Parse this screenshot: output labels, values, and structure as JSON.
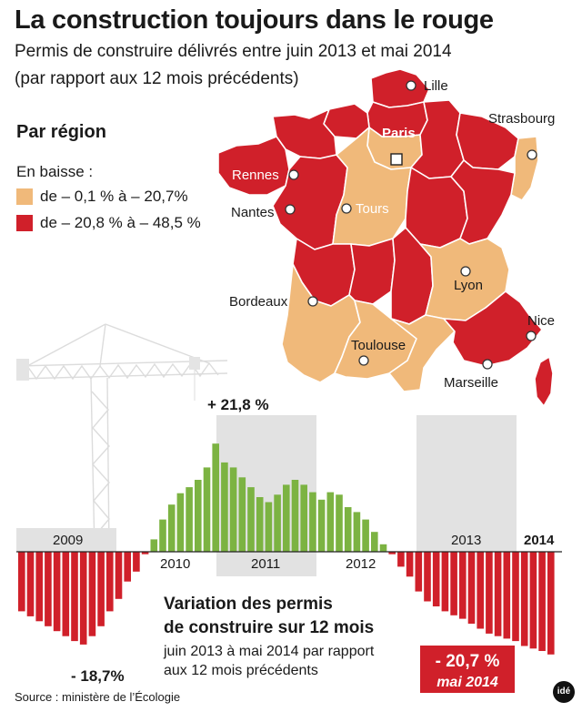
{
  "header": {
    "title": "La construction toujours dans le rouge",
    "subtitle_line1": "Permis de construire délivrés entre juin 2013 et mai 2014",
    "subtitle_line2": "(par rapport aux 12 mois précédents)"
  },
  "legend": {
    "heading": "Par région",
    "subheading": "En baisse :",
    "items": [
      {
        "label": "de – 0,1 % à – 20,7%",
        "color": "#f0b97a"
      },
      {
        "label": "de – 20,8 % à – 48,5 %",
        "color": "#d0202a"
      }
    ]
  },
  "map": {
    "cities": [
      "Lille",
      "Strasbourg",
      "Paris",
      "Rennes",
      "Nantes",
      "Tours",
      "Lyon",
      "Bordeaux",
      "Toulouse",
      "Nice",
      "Marseille"
    ]
  },
  "chart_data": {
    "type": "bar",
    "title": "Variation des permis de construire sur 12 mois",
    "subtitle_line1": "juin 2013 à mai 2014 par rapport",
    "subtitle_line2": "aux 12 mois précédents",
    "ylabel": "%",
    "ylim": [
      -25,
      25
    ],
    "year_labels": [
      "2009",
      "2010",
      "2011",
      "2012",
      "2013",
      "2014"
    ],
    "values": [
      -12,
      -13,
      -14,
      -15,
      -16,
      -17,
      -18,
      -18.7,
      -17,
      -15,
      -12,
      -9.5,
      -6,
      -4,
      -0.5,
      2.5,
      6.5,
      9.5,
      11.8,
      13,
      14.5,
      17,
      21.8,
      18,
      17,
      15,
      13,
      11,
      10,
      11.5,
      13.5,
      14.5,
      13.5,
      12,
      10.5,
      12,
      11.5,
      9,
      8,
      6.5,
      4,
      1.5,
      -0.5,
      -3,
      -5,
      -8,
      -10,
      -11,
      -12,
      -12.8,
      -13.5,
      -14.5,
      -15.5,
      -16.5,
      -17,
      -17.5,
      -18,
      -19,
      -19.5,
      -20,
      -20.7
    ],
    "annotations": [
      {
        "label": "+ 21,8 %"
      },
      {
        "label": "- 18,7%"
      },
      {
        "label": "- 20,7 %",
        "sublabel": "mai 2014"
      }
    ]
  },
  "footer": {
    "source": "Source : ministère de l’Écologie",
    "logo": "idé"
  }
}
